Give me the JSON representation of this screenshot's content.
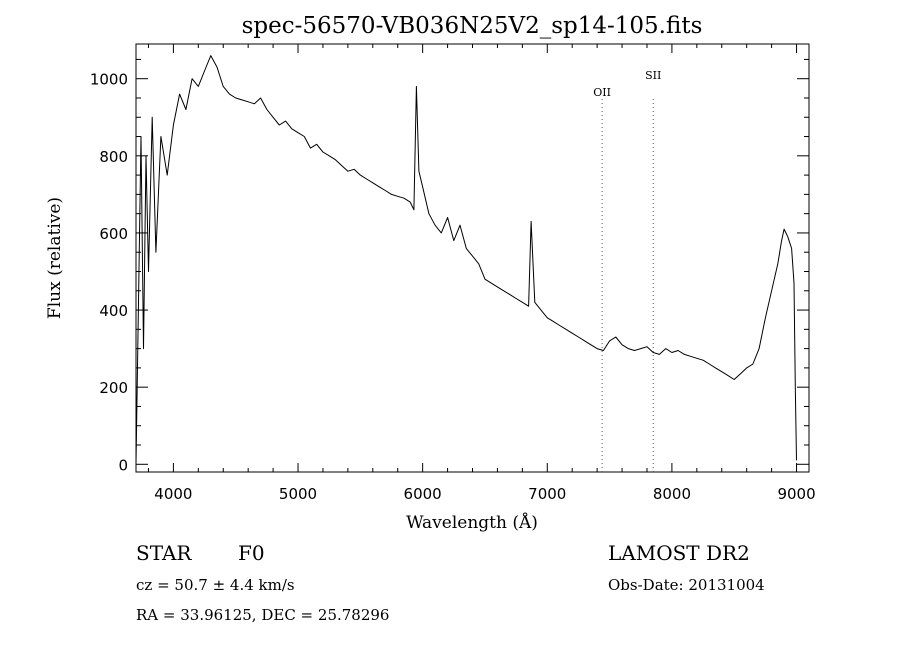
{
  "chart_data": {
    "type": "line",
    "title": "spec-56570-VB036N25V2_sp14-105.fits",
    "xlabel": "Wavelength (Å)",
    "ylabel": "Flux (relative)",
    "xlim": [
      3700,
      9100
    ],
    "ylim": [
      -20,
      1090
    ],
    "x_ticks": [
      4000,
      5000,
      6000,
      7000,
      8000,
      9000
    ],
    "y_ticks": [
      0,
      200,
      400,
      600,
      800,
      1000
    ],
    "grid": false,
    "series": [
      {
        "x": [
          3700,
          3720,
          3740,
          3760,
          3780,
          3800,
          3830,
          3860,
          3900,
          3950,
          4000,
          4050,
          4100,
          4150,
          4200,
          4250,
          4300,
          4350,
          4400,
          4450,
          4500,
          4550,
          4600,
          4650,
          4700,
          4750,
          4800,
          4850,
          4900,
          4950,
          5000,
          5050,
          5100,
          5150,
          5200,
          5250,
          5300,
          5350,
          5400,
          5450,
          5500,
          5550,
          5600,
          5650,
          5700,
          5750,
          5800,
          5850,
          5900,
          5930,
          5950,
          5970,
          6000,
          6050,
          6100,
          6150,
          6200,
          6250,
          6300,
          6350,
          6400,
          6450,
          6500,
          6550,
          6600,
          6650,
          6700,
          6750,
          6800,
          6850,
          6870,
          6900,
          6950,
          7000,
          7050,
          7100,
          7150,
          7200,
          7250,
          7300,
          7350,
          7400,
          7450,
          7500,
          7550,
          7600,
          7650,
          7700,
          7750,
          7800,
          7850,
          7900,
          7950,
          8000,
          8050,
          8100,
          8150,
          8200,
          8250,
          8300,
          8350,
          8400,
          8450,
          8500,
          8550,
          8600,
          8650,
          8700,
          8750,
          8800,
          8850,
          8880,
          8900,
          8930,
          8960,
          8980,
          8990,
          9000
        ],
        "values": [
          0,
          420,
          850,
          300,
          800,
          500,
          900,
          550,
          850,
          750,
          880,
          960,
          920,
          1000,
          980,
          1020,
          1060,
          1030,
          980,
          960,
          950,
          945,
          940,
          935,
          950,
          920,
          900,
          880,
          890,
          870,
          860,
          850,
          820,
          830,
          810,
          800,
          790,
          775,
          760,
          765,
          750,
          740,
          730,
          720,
          710,
          700,
          695,
          690,
          680,
          660,
          980,
          760,
          720,
          650,
          620,
          600,
          640,
          580,
          620,
          560,
          540,
          520,
          480,
          470,
          460,
          450,
          440,
          430,
          420,
          410,
          630,
          420,
          400,
          380,
          370,
          360,
          350,
          340,
          330,
          320,
          310,
          300,
          295,
          320,
          330,
          310,
          300,
          295,
          300,
          305,
          290,
          285,
          300,
          290,
          295,
          285,
          280,
          275,
          270,
          260,
          250,
          240,
          230,
          220,
          235,
          250,
          260,
          300,
          380,
          450,
          520,
          580,
          610,
          590,
          560,
          470,
          200,
          10
        ]
      }
    ],
    "line_marks": [
      {
        "label": "OII",
        "x": 7440
      },
      {
        "label": "SII",
        "x": 7850
      }
    ]
  },
  "info": {
    "object_type": "STAR",
    "subclass": "F0",
    "survey": "LAMOST DR2",
    "cz": "cz = 50.7 ± 4.4 km/s",
    "obs_date": "Obs-Date: 20131004",
    "coords": "RA =  33.96125, DEC =  25.78296"
  }
}
